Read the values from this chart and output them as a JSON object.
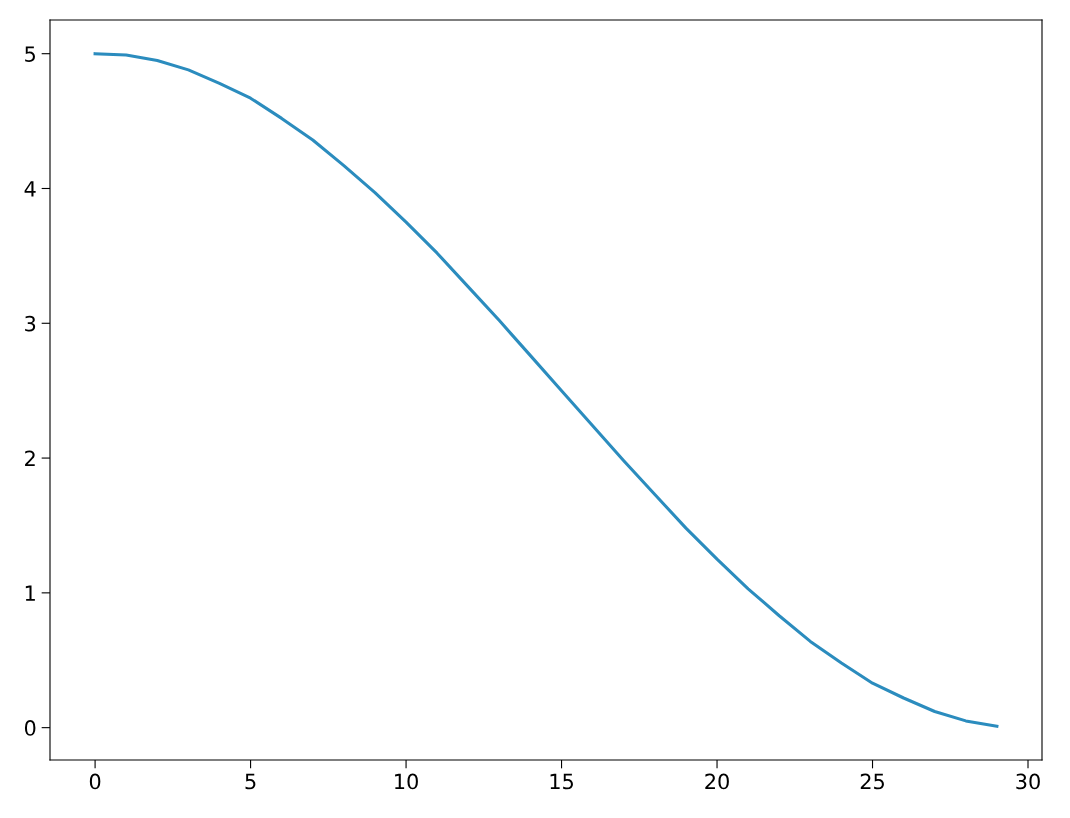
{
  "chart_data": {
    "type": "line",
    "x": [
      0,
      1,
      2,
      3,
      4,
      5,
      6,
      7,
      8,
      9,
      10,
      11,
      12,
      13,
      14,
      15,
      16,
      17,
      18,
      19,
      20,
      21,
      22,
      23,
      24,
      25,
      26,
      27,
      28,
      29
    ],
    "series": [
      {
        "color": "#2b8cbe",
        "values": [
          5.0,
          4.99,
          4.95,
          4.88,
          4.78,
          4.67,
          4.52,
          4.36,
          4.17,
          3.97,
          3.75,
          3.52,
          3.27,
          3.02,
          2.76,
          2.5,
          2.24,
          1.98,
          1.73,
          1.48,
          1.25,
          1.03,
          0.83,
          0.64,
          0.48,
          0.33,
          0.22,
          0.12,
          0.05,
          0.01
        ]
      }
    ],
    "xlim": [
      -1.45,
      30.45
    ],
    "xticks": [
      0,
      5,
      10,
      15,
      20,
      25,
      30
    ],
    "ylim": [
      -0.24,
      5.25
    ],
    "yticks": [
      0,
      1,
      2,
      3,
      4,
      5
    ],
    "grid": false,
    "legend": false,
    "marker": "none",
    "line_style": "solid"
  }
}
